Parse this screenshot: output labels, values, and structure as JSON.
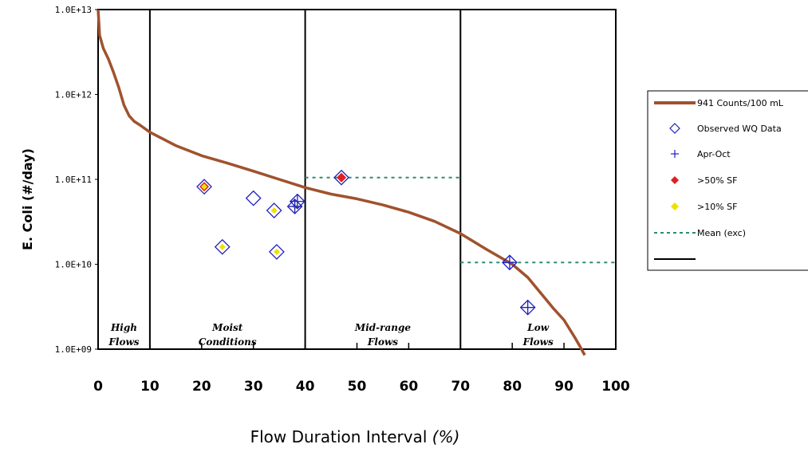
{
  "chart_data": {
    "type": "scatter",
    "xlabel": "Flow Duration Interval",
    "xlabel_unit": "(%)",
    "ylabel_prefix": "E",
    "ylabel_main": ". Coli (#/day)",
    "x_ticks": [
      "0",
      "10",
      "20",
      "30",
      "40",
      "50",
      "60",
      "70",
      "80",
      "90",
      "100"
    ],
    "y_ticks": [
      "1.0E+09",
      "1.0E+10",
      "1.0E+11",
      "1.0E+12",
      "1.0E+13"
    ],
    "xlim": [
      0,
      100
    ],
    "ylim": [
      1000000000.0,
      10000000000000.0
    ],
    "y_scale": "log",
    "grid": false,
    "legend_position": "right",
    "region_dividers": [
      10,
      40,
      70
    ],
    "regions": [
      {
        "line1": "High",
        "line2": "Flows"
      },
      {
        "line1": "Moist",
        "line2": "Conditions"
      },
      {
        "line1": "Mid-range",
        "line2": "Flows"
      },
      {
        "line1": "Low",
        "line2": "Flows"
      }
    ],
    "curve": {
      "name": "941 Counts/100 mL",
      "color": "#a0522d",
      "points": [
        [
          0,
          10000000000000.0
        ],
        [
          0.3,
          5000000000000.0
        ],
        [
          1,
          3500000000000.0
        ],
        [
          2,
          2600000000000.0
        ],
        [
          3,
          1800000000000.0
        ],
        [
          4,
          1200000000000.0
        ],
        [
          5,
          750000000000.0
        ],
        [
          6,
          560000000000.0
        ],
        [
          7,
          480000000000.0
        ],
        [
          8,
          440000000000.0
        ],
        [
          10,
          360000000000.0
        ],
        [
          15,
          250000000000.0
        ],
        [
          20,
          190000000000.0
        ],
        [
          25,
          155000000000.0
        ],
        [
          30,
          125000000000.0
        ],
        [
          35,
          100000000000.0
        ],
        [
          40,
          80000000000.0
        ],
        [
          45,
          67000000000.0
        ],
        [
          50,
          59000000000.0
        ],
        [
          55,
          50000000000.0
        ],
        [
          60,
          41000000000.0
        ],
        [
          65,
          32000000000.0
        ],
        [
          70,
          23000000000.0
        ],
        [
          75,
          15000000000.0
        ],
        [
          80,
          10000000000.0
        ],
        [
          83,
          7000000000.0
        ],
        [
          85,
          5000000000.0
        ],
        [
          88,
          3000000000.0
        ],
        [
          90,
          2200000000.0
        ],
        [
          92,
          1400000000.0
        ],
        [
          93,
          1100000000.0
        ],
        [
          94,
          850000000.0
        ]
      ]
    },
    "observed": {
      "name": "Observed WQ Data",
      "color": "#2020c0",
      "points": [
        [
          20.5,
          82000000000.0
        ],
        [
          24,
          16000000000.0
        ],
        [
          30,
          60000000000.0
        ],
        [
          34,
          43000000000.0
        ],
        [
          34.5,
          14000000000.0
        ],
        [
          38,
          48000000000.0
        ],
        [
          38.5,
          55000000000.0
        ],
        [
          47,
          105000000000.0
        ],
        [
          79.5,
          10500000000.0
        ],
        [
          83,
          3100000000.0
        ]
      ]
    },
    "apr_oct": {
      "name": "Apr-Oct",
      "points": [
        [
          38,
          48000000000.0
        ],
        [
          38.5,
          55000000000.0
        ],
        [
          79.5,
          10500000000.0
        ],
        [
          83,
          3100000000.0
        ]
      ]
    },
    "gt50_sf": {
      "name": ">50% SF",
      "color": "#e02020",
      "points": [
        [
          20.5,
          82000000000.0
        ],
        [
          47,
          105000000000.0
        ]
      ]
    },
    "gt10_sf": {
      "name": ">10% SF",
      "color": "#f0e000",
      "points": [
        [
          20.5,
          82000000000.0
        ],
        [
          24,
          16000000000.0
        ],
        [
          34,
          43000000000.0
        ],
        [
          34.5,
          14000000000.0
        ],
        [
          38,
          48000000000.0
        ]
      ]
    },
    "mean_exc": {
      "name": "Mean (exc)",
      "color": "#2e8b6f",
      "segments": [
        {
          "x": [
            40,
            70
          ],
          "y": 105000000000.0
        },
        {
          "x": [
            70,
            100
          ],
          "y": 10500000000.0
        }
      ]
    },
    "legend_blank_label": ""
  }
}
